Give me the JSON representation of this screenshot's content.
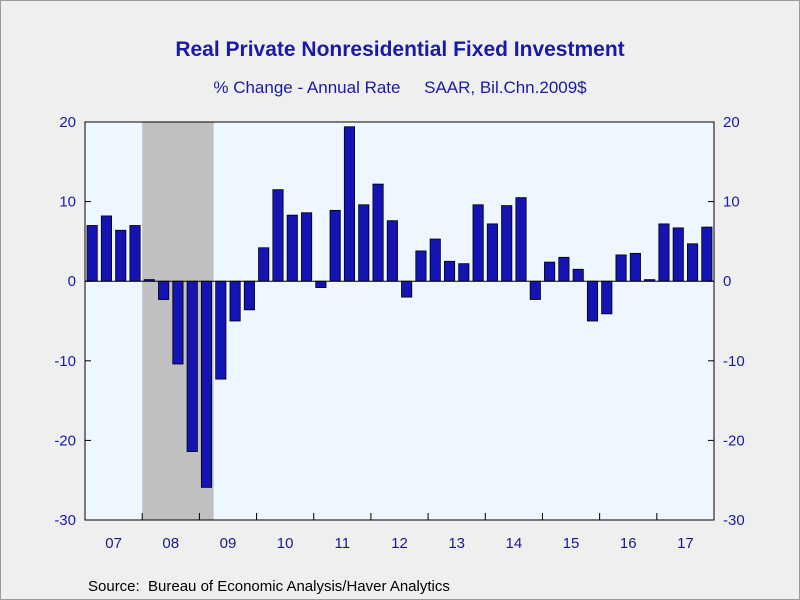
{
  "chart_data": {
    "type": "bar",
    "title": "Real Private Nonresidential Fixed Investment",
    "subtitle": "% Change - Annual Rate     SAAR, Bil.Chn.2009$",
    "source": "Source:  Bureau of Economic Analysis/Haver Analytics",
    "ylim": [
      -30,
      20
    ],
    "yticks": [
      20,
      10,
      0,
      -10,
      -20,
      -30
    ],
    "ytick_labels": [
      "20",
      "10",
      "0",
      "-10",
      "-20",
      "-30"
    ],
    "year_labels": [
      "07",
      "08",
      "09",
      "10",
      "11",
      "12",
      "13",
      "14",
      "15",
      "16",
      "17"
    ],
    "recession": {
      "start_quarter_index": 4,
      "end_quarter_index": 9
    },
    "categories": [
      "2007Q1",
      "2007Q2",
      "2007Q3",
      "2007Q4",
      "2008Q1",
      "2008Q2",
      "2008Q3",
      "2008Q4",
      "2009Q1",
      "2009Q2",
      "2009Q3",
      "2009Q4",
      "2010Q1",
      "2010Q2",
      "2010Q3",
      "2010Q4",
      "2011Q1",
      "2011Q2",
      "2011Q3",
      "2011Q4",
      "2012Q1",
      "2012Q2",
      "2012Q3",
      "2012Q4",
      "2013Q1",
      "2013Q2",
      "2013Q3",
      "2013Q4",
      "2014Q1",
      "2014Q2",
      "2014Q3",
      "2014Q4",
      "2015Q1",
      "2015Q2",
      "2015Q3",
      "2015Q4",
      "2016Q1",
      "2016Q2",
      "2016Q3",
      "2016Q4",
      "2017Q1",
      "2017Q2",
      "2017Q3",
      "2017Q4"
    ],
    "values": [
      7.0,
      8.2,
      6.4,
      7.0,
      0.2,
      -2.3,
      -10.4,
      -21.4,
      -25.9,
      -12.3,
      -5.0,
      -3.6,
      4.2,
      11.5,
      8.3,
      8.6,
      -0.8,
      8.9,
      19.4,
      9.6,
      12.2,
      7.6,
      -2.0,
      3.8,
      5.3,
      2.5,
      2.2,
      9.6,
      7.2,
      9.5,
      10.5,
      -2.3,
      2.4,
      3.0,
      1.5,
      -5.0,
      -4.1,
      3.3,
      3.5,
      0.2,
      7.2,
      6.7,
      4.7,
      6.8
    ],
    "colors": {
      "bar": "#1414b4",
      "plot_bg": "#eef6ff",
      "recession": "#c0c0c0",
      "axis_text": "#1a1aa6"
    }
  }
}
